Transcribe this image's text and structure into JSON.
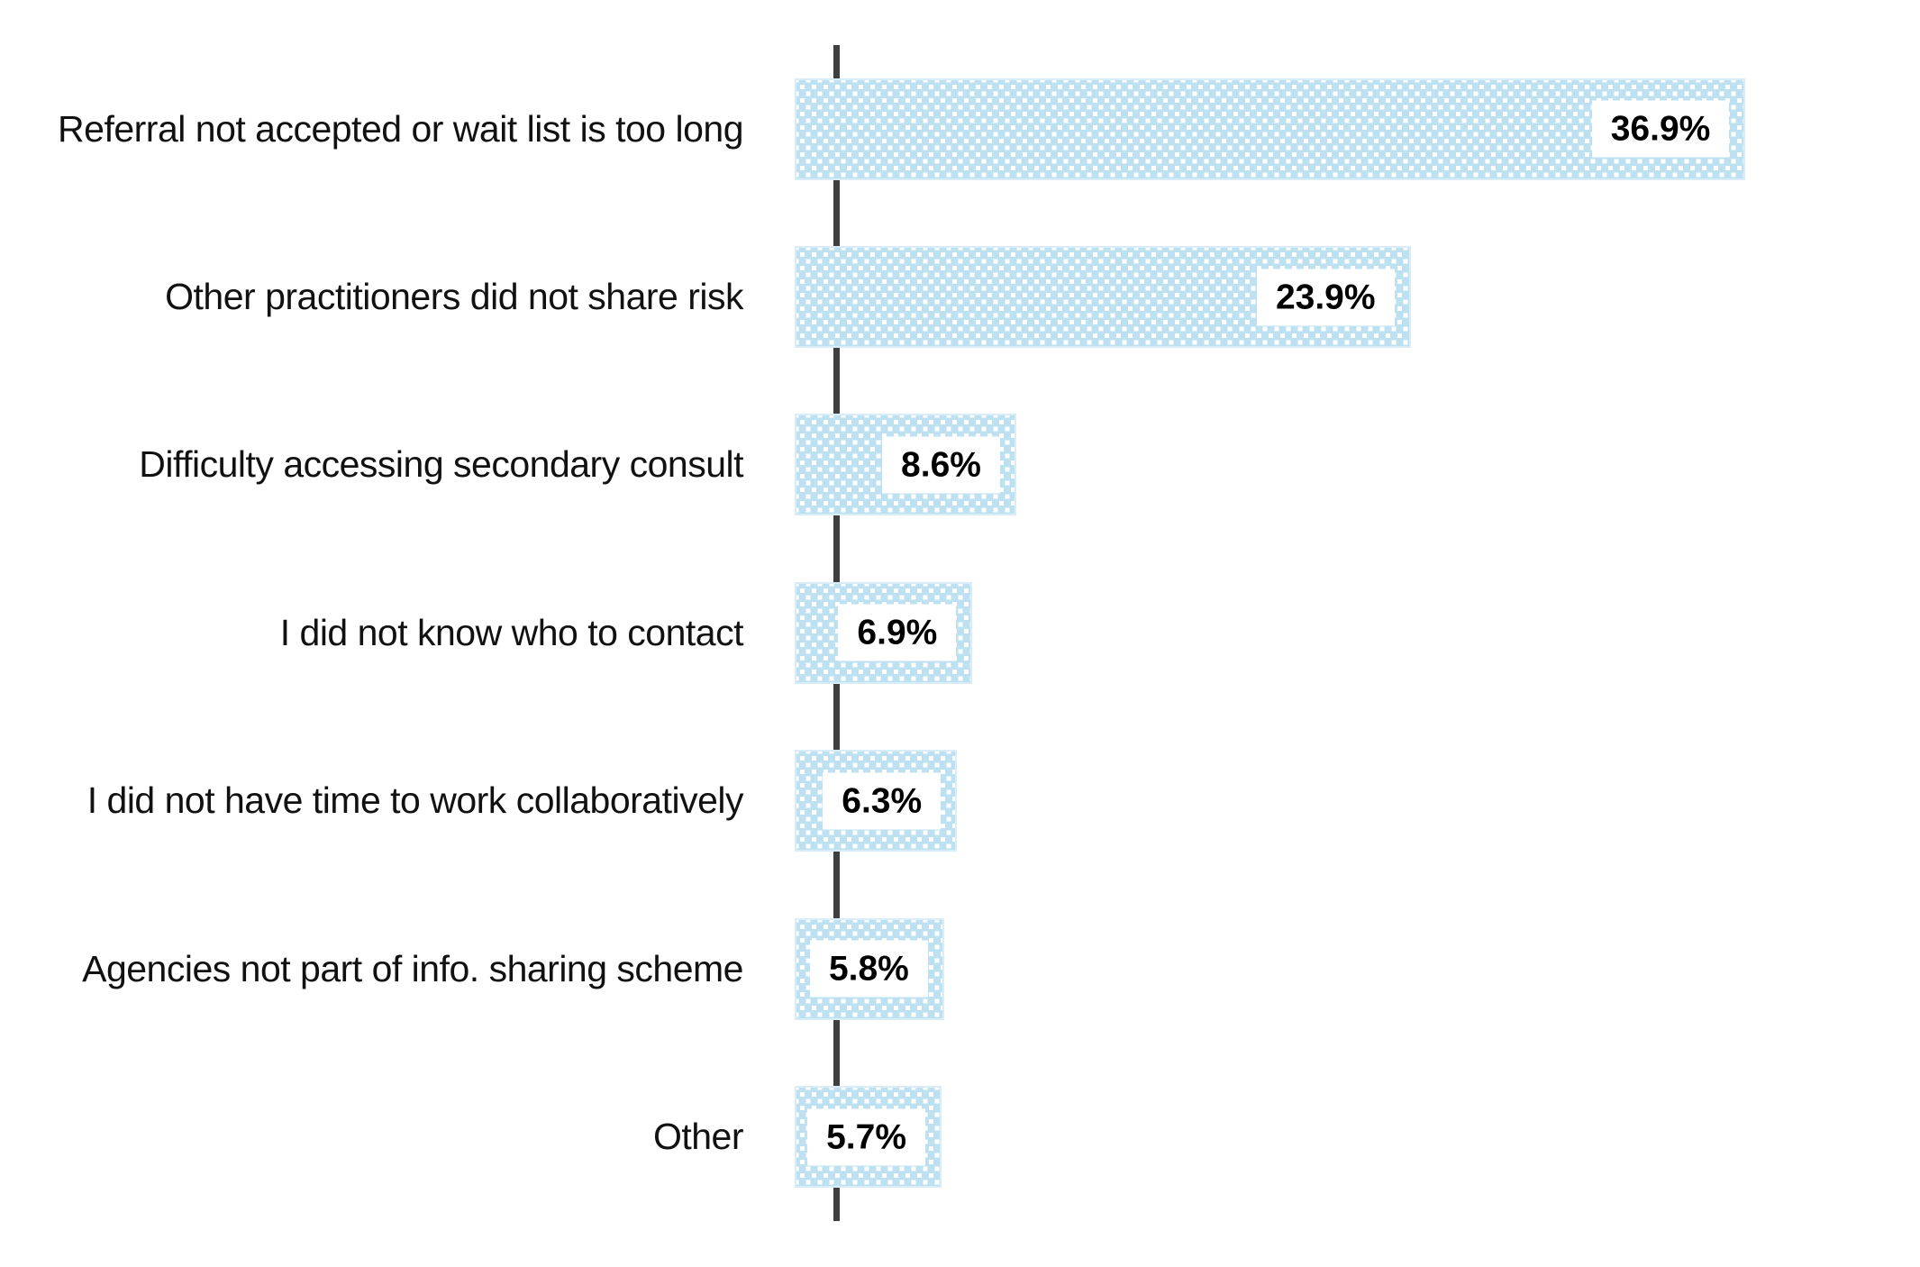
{
  "chart_data": {
    "type": "bar",
    "orientation": "horizontal",
    "title": "",
    "xlabel": "",
    "ylabel": "",
    "grid": false,
    "legend": false,
    "axis_color": "#3f3f3f",
    "bar_fill_color": "#bee1f2",
    "bar_pattern": "white square polka dots",
    "value_label_style": "bold black text in white box inside bar end",
    "xlim": [
      0,
      40
    ],
    "categories": [
      "Referral not accepted or wait list is too long",
      "Other practitioners did not share risk",
      "Difficulty accessing secondary consult",
      "I did not know who to contact",
      "I did not have time to work collaboratively",
      "Agencies not part of info. sharing scheme",
      "Other"
    ],
    "values": [
      36.9,
      23.9,
      8.6,
      6.9,
      6.3,
      5.8,
      5.7
    ],
    "value_labels": [
      "36.9%",
      "23.9%",
      "8.6%",
      "6.9%",
      "6.3%",
      "5.8%",
      "5.7%"
    ]
  }
}
